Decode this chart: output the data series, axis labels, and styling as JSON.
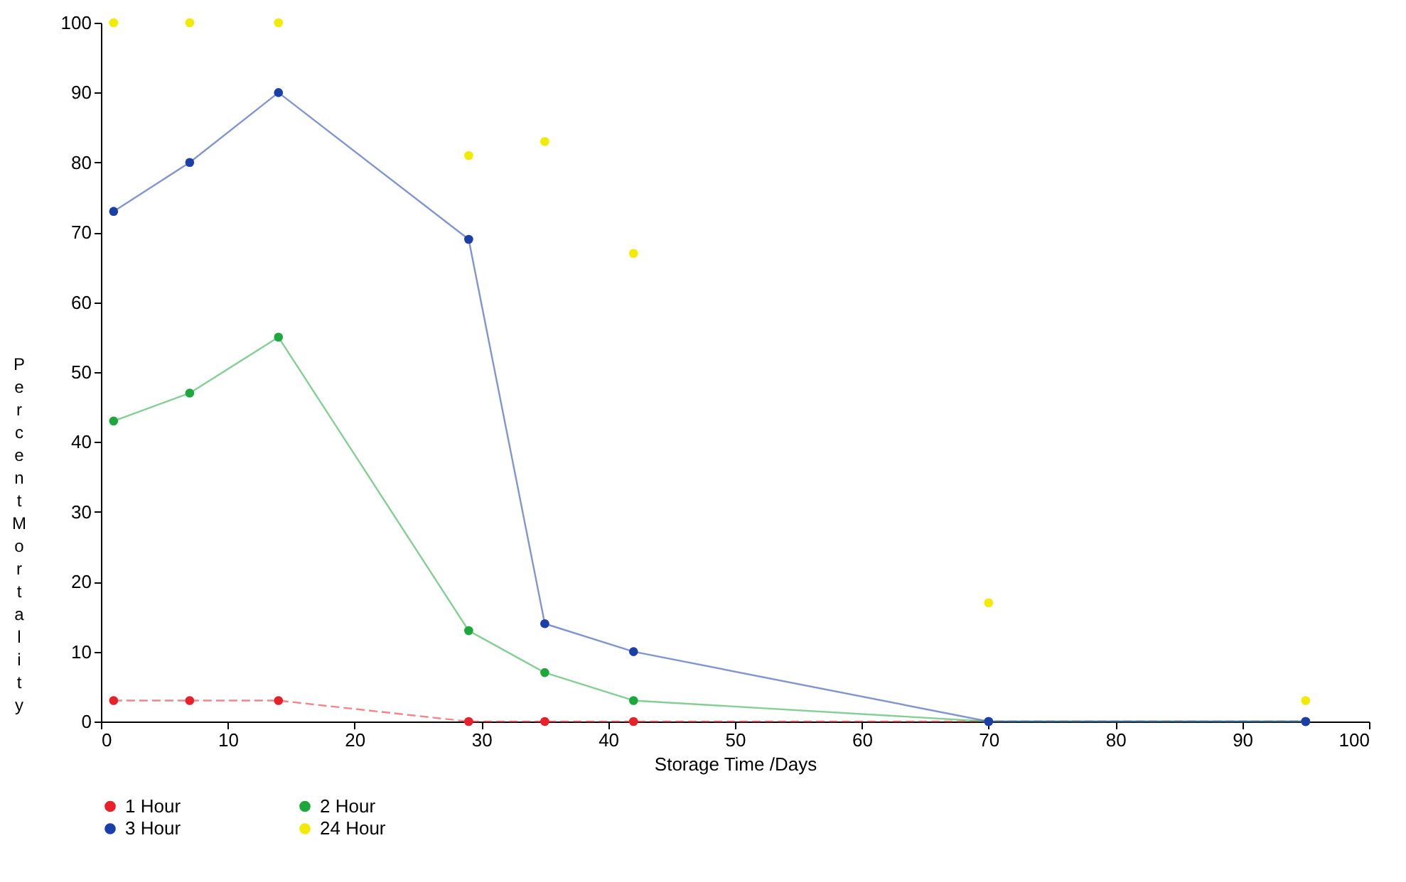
{
  "chart_data": {
    "type": "line",
    "xlabel": "Storage Time /Days",
    "ylabel": "Percent Mortality",
    "x": [
      1,
      7,
      14,
      29,
      35,
      42,
      70,
      95
    ],
    "series": [
      {
        "name": "1 Hour",
        "color": "#e8202a",
        "line_style": "dashed",
        "values": [
          3,
          3,
          3,
          0,
          0,
          0,
          0,
          0
        ]
      },
      {
        "name": "2 Hour",
        "color": "#1ea83c",
        "values": [
          43,
          47,
          55,
          13,
          7,
          3,
          0,
          0
        ]
      },
      {
        "name": "3 Hour",
        "color": "#1a3fa8",
        "values": [
          73,
          80,
          90,
          69,
          14,
          10,
          0,
          0
        ]
      },
      {
        "name": "24 Hour",
        "color": "#f2ea00",
        "type": "scatter",
        "values": [
          100,
          100,
          100,
          81,
          83,
          67,
          17,
          3
        ]
      }
    ],
    "xlim": [
      0,
      100
    ],
    "xticks": [
      0,
      10,
      20,
      30,
      40,
      50,
      60,
      70,
      80,
      90,
      100
    ],
    "ylim": [
      0,
      100
    ],
    "yticks": [
      0,
      10,
      20,
      30,
      40,
      50,
      60,
      70,
      80,
      90,
      100
    ],
    "marker": "circle",
    "grid": false,
    "legend": "bottom"
  }
}
